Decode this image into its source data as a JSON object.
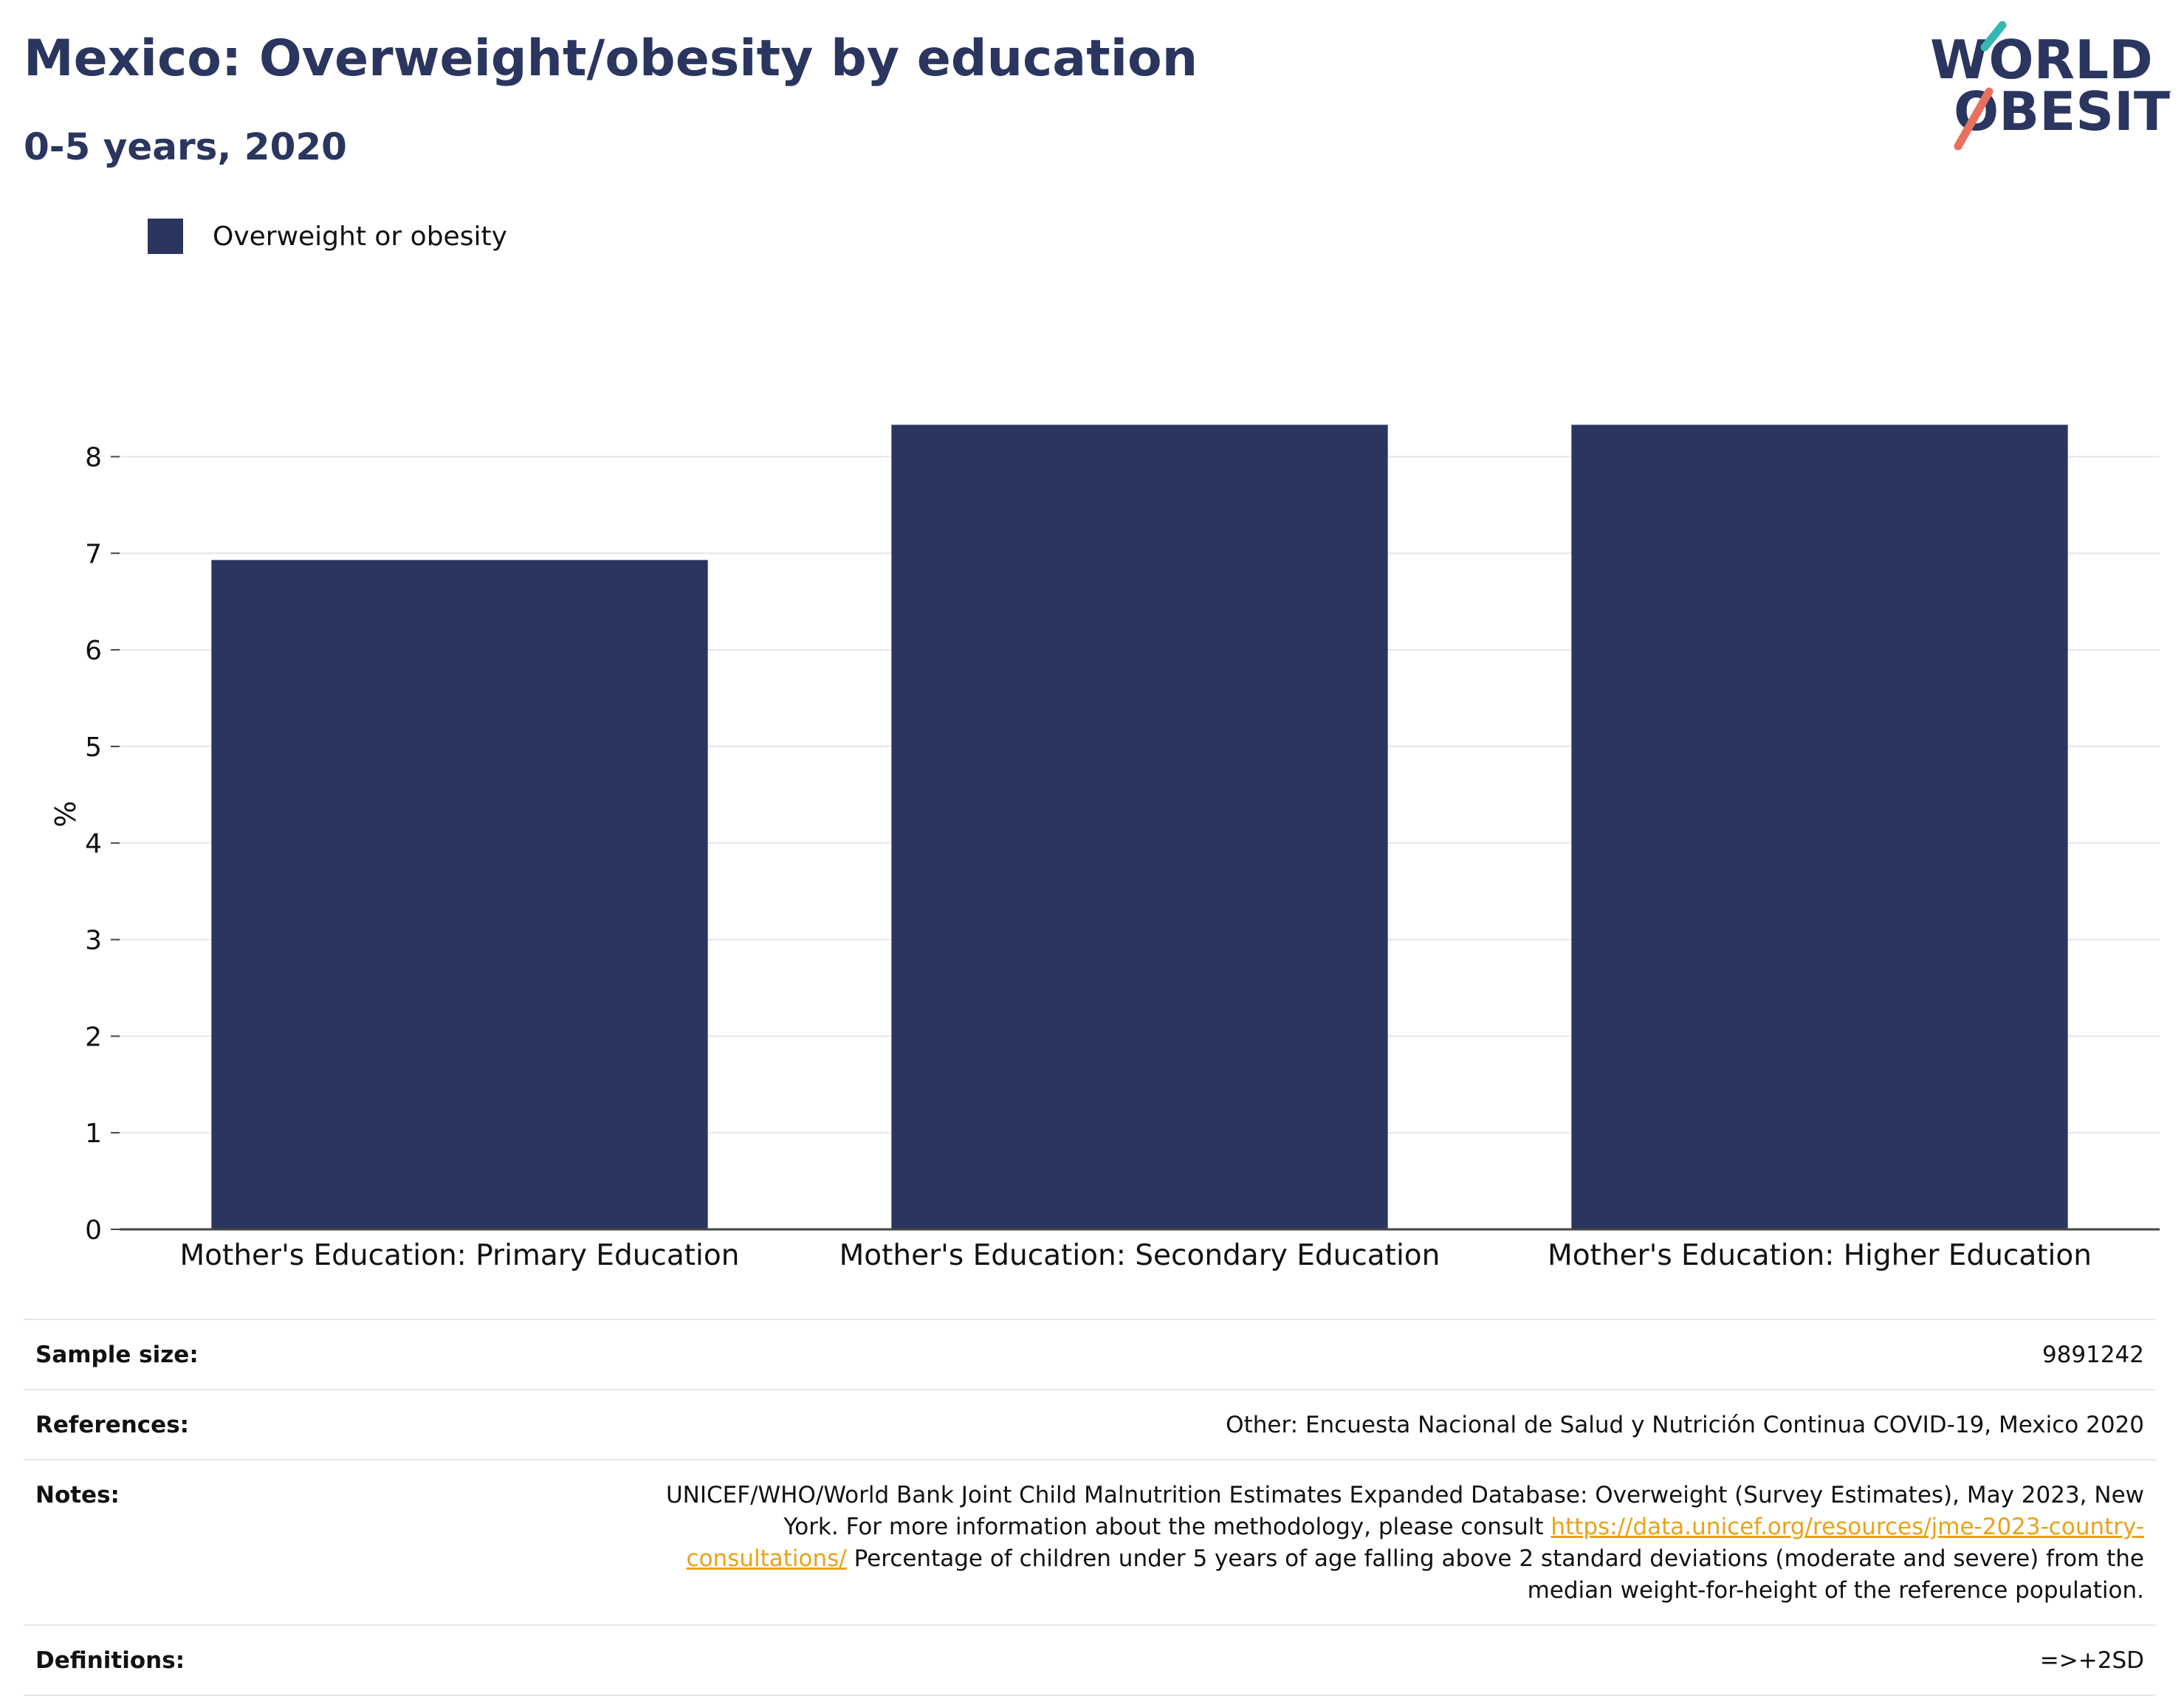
{
  "header": {
    "title": "Mexico: Overweight/obesity by education",
    "subtitle": "0-5 years, 2020"
  },
  "logo": {
    "line1": "WORLD",
    "line2": "OBESITY",
    "accent_teal": "#35b8b1",
    "accent_red": "#e8705e",
    "text_color": "#2a365f"
  },
  "legend": {
    "label": "Overweight or obesity",
    "color": "#2a365f"
  },
  "chart_data": {
    "type": "bar",
    "title": "Mexico: Overweight/obesity by education",
    "subtitle": "0-5 years, 2020",
    "categories": [
      "Mother's Education: Primary Education",
      "Mother's Education: Secondary Education",
      "Mother's Education: Higher Education"
    ],
    "series": [
      {
        "name": "Overweight or obesity",
        "values": [
          6.93,
          8.33,
          8.33
        ],
        "color": "#2a365f"
      }
    ],
    "xlabel": "",
    "ylabel": "%",
    "ylim": [
      0,
      8.6
    ],
    "yticks": [
      0,
      1,
      2,
      3,
      4,
      5,
      6,
      7,
      8
    ],
    "grid": true,
    "legend_position": "top-left"
  },
  "info": {
    "sample_size_label": "Sample size:",
    "sample_size_value": "9891242",
    "references_label": "References:",
    "references_value": "Other: Encuesta Nacional de Salud y Nutrición Continua COVID-19, Mexico 2020",
    "notes_label": "Notes:",
    "notes_text_before_link": "UNICEF/WHO/World Bank Joint Child Malnutrition Estimates Expanded Database: Overweight (Survey Estimates), May 2023, New York. For more information about the methodology, please consult ",
    "notes_link": "https://data.unicef.org/resources/jme-2023-country-consultations/",
    "notes_text_after_link": " Percentage of children under 5 years of age falling above 2 standard deviations (moderate and severe) from the median weight-for-height of the reference population.",
    "definitions_label": "Definitions:",
    "definitions_value": "=>+2SD"
  }
}
